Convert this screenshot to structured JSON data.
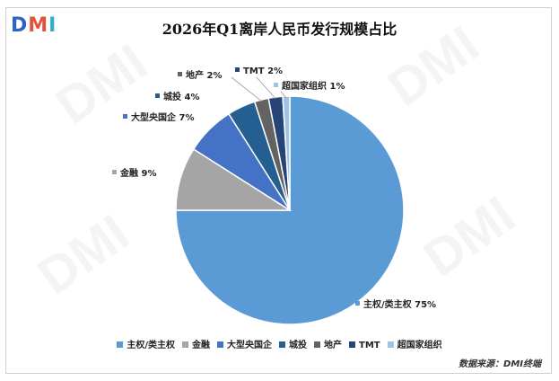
{
  "logo": {
    "d": "D",
    "m": "M",
    "i": "I"
  },
  "watermark_text": "DMI",
  "source": "数据来源：DMI终端",
  "chart_data": {
    "type": "pie",
    "title": "2026年Q1离岸人民币发行规模占比",
    "categories": [
      "主权/类主权",
      "金融",
      "大型央国企",
      "城投",
      "地产",
      "TMT",
      "超国家组织"
    ],
    "values": [
      75,
      9,
      7,
      4,
      2,
      2,
      1
    ],
    "data_labels": [
      "主权/类主权 75%",
      "金融 9%",
      "大型央国企 7%",
      "城投 4%",
      "地产 2%",
      "TMT 2%",
      "超国家组织 1%"
    ],
    "colors": [
      "#5b9bd5",
      "#a5a5a5",
      "#4472c4",
      "#255e91",
      "#636363",
      "#264478",
      "#9dc3e6"
    ],
    "legend_position": "bottom",
    "start": "12 o'clock, clockwise"
  }
}
